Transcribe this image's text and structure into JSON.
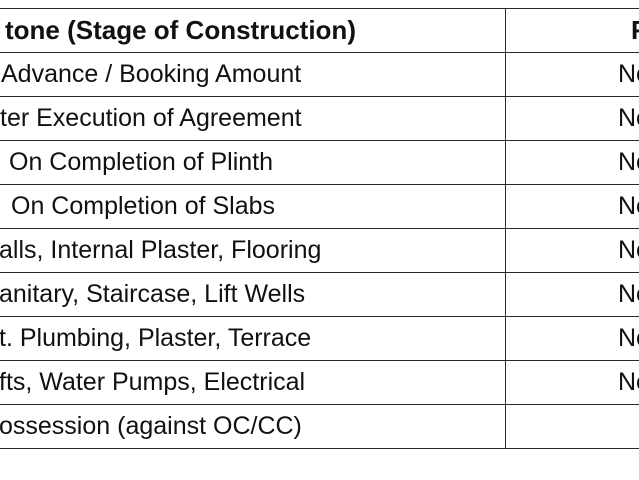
{
  "table": {
    "headers": {
      "milestone": "tone (Stage of Construction)",
      "rera": "RERA"
    },
    "rows": [
      {
        "milestone": "Advance / Booking Amount",
        "rera": "No"
      },
      {
        "milestone": "ter Execution of Agreement",
        "rera": "No"
      },
      {
        "milestone": "On Completion of Plinth",
        "rera": "No"
      },
      {
        "milestone": "On Completion of Slabs",
        "rera": "No"
      },
      {
        "milestone": "alls, Internal Plaster, Flooring",
        "rera": "No"
      },
      {
        "milestone": "anitary, Staircase, Lift Wells",
        "rera": "No"
      },
      {
        "milestone": "t. Plumbing, Plaster, Terrace",
        "rera": "No"
      },
      {
        "milestone": "fts, Water Pumps, Electrical",
        "rera": "No"
      },
      {
        "milestone": "ossession (against OC/CC)",
        "rera": ""
      }
    ]
  }
}
